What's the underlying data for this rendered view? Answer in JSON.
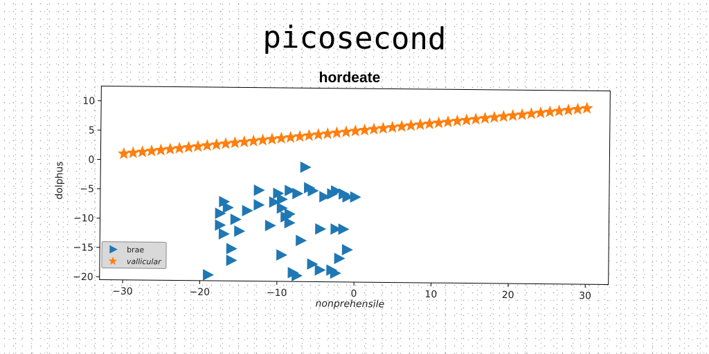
{
  "chart_data": {
    "type": "scatter",
    "suptitle": "picosecond",
    "title": "hordeate",
    "xlabel": "nonprehensile",
    "ylabel": "dolphus",
    "xlim": [
      -33,
      33
    ],
    "ylim": [
      -20.5,
      12.5
    ],
    "xticks": [
      -30,
      -20,
      -10,
      0,
      10,
      20,
      30
    ],
    "yticks": [
      10,
      5,
      0,
      -5,
      -10,
      -15,
      -20
    ],
    "xtick_labels": [
      "−30",
      "−20",
      "−10",
      "0",
      "10",
      "20",
      "30"
    ],
    "ytick_labels": [
      "10",
      "5",
      "0",
      "−5",
      "−10",
      "−15",
      "−20"
    ],
    "grid": false,
    "legend_position": "lower-left",
    "series": [
      {
        "name": "brae",
        "marker": "triangle-right",
        "color": "#1f77b4",
        "points": [
          [
            -6.5,
            -1.0
          ],
          [
            -12.5,
            -5.0
          ],
          [
            -10.0,
            -5.5
          ],
          [
            -8.5,
            -5.0
          ],
          [
            -7.5,
            -5.5
          ],
          [
            -6.0,
            -4.5
          ],
          [
            -5.5,
            -5.0
          ],
          [
            -3.0,
            -5.5
          ],
          [
            -2.5,
            -5.0
          ],
          [
            -1.5,
            -5.5
          ],
          [
            -1.0,
            -6.0
          ],
          [
            0.0,
            -6.0
          ],
          [
            -4.0,
            -6.0
          ],
          [
            -9.5,
            -6.5
          ],
          [
            -10.5,
            -7.0
          ],
          [
            -12.5,
            -7.5
          ],
          [
            -17.0,
            -7.0
          ],
          [
            -16.5,
            -8.0
          ],
          [
            -14.0,
            -8.5
          ],
          [
            -9.5,
            -8.0
          ],
          [
            -8.5,
            -9.0
          ],
          [
            -17.5,
            -9.0
          ],
          [
            -15.5,
            -10.0
          ],
          [
            -11.0,
            -11.0
          ],
          [
            -8.5,
            -10.5
          ],
          [
            -9.0,
            -9.5
          ],
          [
            -4.5,
            -11.5
          ],
          [
            -2.5,
            -11.5
          ],
          [
            -1.5,
            -11.5
          ],
          [
            -17.5,
            -11.0
          ],
          [
            -15.0,
            -12.0
          ],
          [
            -17.0,
            -12.5
          ],
          [
            -7.0,
            -13.5
          ],
          [
            -16.0,
            -15.0
          ],
          [
            -9.5,
            -16.0
          ],
          [
            -1.0,
            -15.0
          ],
          [
            -2.0,
            -16.5
          ],
          [
            -16.0,
            -17.0
          ],
          [
            -5.5,
            -17.5
          ],
          [
            -4.5,
            -18.5
          ],
          [
            -3.0,
            -18.5
          ],
          [
            -2.5,
            -19.0
          ],
          [
            -8.0,
            -19.0
          ],
          [
            -7.5,
            -19.5
          ],
          [
            -19.0,
            -19.5
          ]
        ]
      },
      {
        "name": "vallicular",
        "marker": "star",
        "color": "#ff7f0e",
        "x_start": -30,
        "x_end": 30,
        "y_start": 1.0,
        "y_end": 9.5,
        "count": 51
      }
    ]
  }
}
